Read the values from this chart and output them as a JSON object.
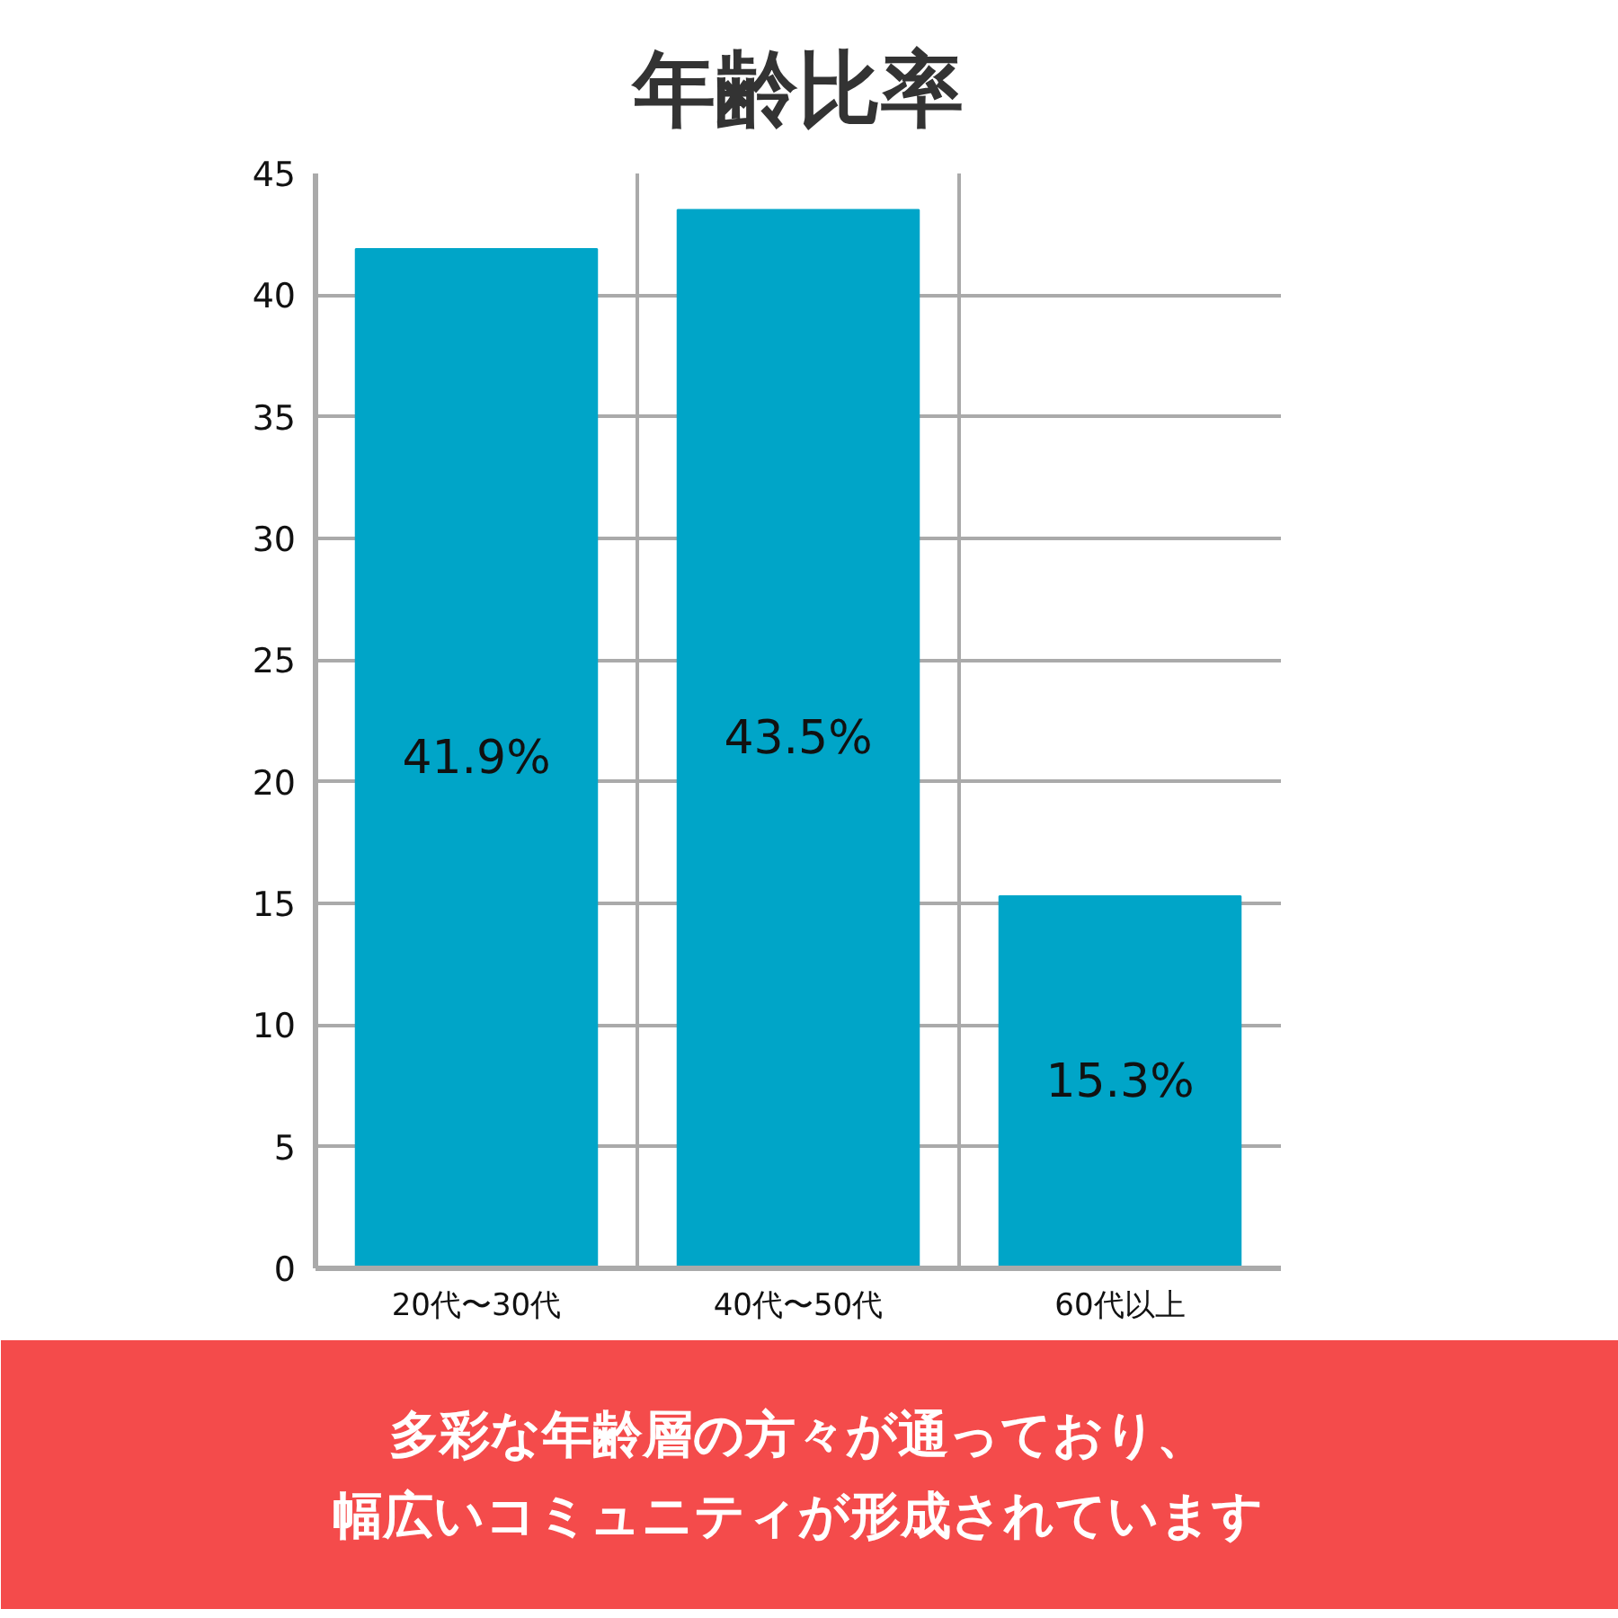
{
  "chart_data": {
    "type": "bar",
    "title": "年齢比率",
    "categories": [
      "20代〜30代",
      "40代〜50代",
      "60代以上"
    ],
    "values": [
      41.9,
      43.5,
      15.3
    ],
    "value_labels": [
      "41.9%",
      "43.5%",
      "15.3%"
    ],
    "color": "#00a5c8",
    "ylim": [
      0,
      45
    ],
    "yticks": [
      0,
      5,
      10,
      15,
      20,
      25,
      30,
      35,
      40,
      45
    ],
    "grid": true,
    "annotations": [
      "多彩な年齢層の方々が通っており、",
      "幅広いコミュニティが形成されています"
    ]
  }
}
